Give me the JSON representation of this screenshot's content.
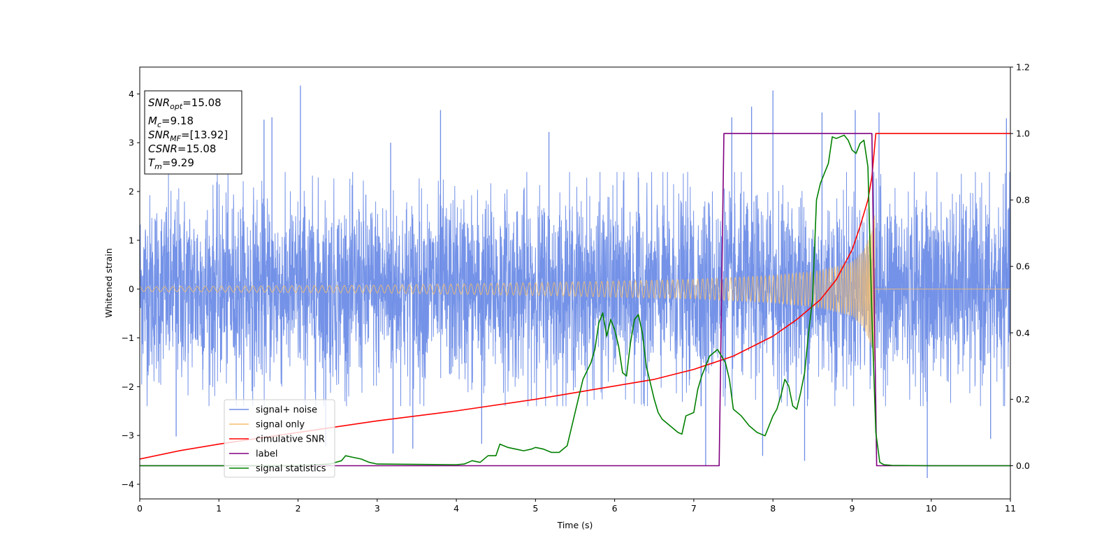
{
  "chart_data": {
    "type": "line",
    "xlabel": "Time (s)",
    "ylabel": "Whitened strain",
    "xlim": [
      0,
      11
    ],
    "ylim": [
      -4.3,
      4.55
    ],
    "ylim_right": [
      -0.1,
      1.2
    ],
    "x_ticks": [
      0,
      1,
      2,
      3,
      4,
      5,
      6,
      7,
      8,
      9,
      10,
      11
    ],
    "y_ticks": [
      -4,
      -3,
      -2,
      -1,
      0,
      1,
      2,
      3,
      4
    ],
    "y_ticks_right": [
      0.0,
      0.2,
      0.4,
      0.6,
      0.8,
      1.0,
      1.2
    ],
    "y_tick_labels": [
      "−4",
      "−3",
      "−2",
      "−1",
      "0",
      "1",
      "2",
      "3",
      "4"
    ],
    "y_tick_labels_right": [
      "0.0",
      "0.2",
      "0.4",
      "0.6",
      "0.8",
      "1.0",
      "1.2"
    ],
    "grid": false,
    "legend_position": "lower-left",
    "series": [
      {
        "name": "signal+ noise",
        "axis": "left",
        "color": "#6d8ce6",
        "style": "noise-band",
        "x_range": [
          0,
          11
        ],
        "typical_range": [
          -1.8,
          1.9
        ],
        "spikes": [
          {
            "x": 2.03,
            "y": 4.17
          },
          {
            "x": 1.57,
            "y": 3.47
          },
          {
            "x": 1.67,
            "y": 3.52
          },
          {
            "x": 3.8,
            "y": 3.67
          },
          {
            "x": 7.48,
            "y": 3.52
          },
          {
            "x": 7.73,
            "y": 3.74
          },
          {
            "x": 8.0,
            "y": 4.07
          },
          {
            "x": 8.62,
            "y": 3.62
          },
          {
            "x": 9.04,
            "y": 3.67
          },
          {
            "x": 9.34,
            "y": 3.62
          },
          {
            "x": 10.95,
            "y": 3.5
          },
          {
            "x": 5.17,
            "y": 3.22
          },
          {
            "x": 3.17,
            "y": 3.0
          },
          {
            "x": 0.46,
            "y": -3.02
          },
          {
            "x": 2.35,
            "y": -3.22
          },
          {
            "x": 3.2,
            "y": -3.37
          },
          {
            "x": 3.45,
            "y": -3.27
          },
          {
            "x": 7.15,
            "y": -3.62
          },
          {
            "x": 8.4,
            "y": -3.52
          },
          {
            "x": 9.95,
            "y": -3.87
          },
          {
            "x": 10.75,
            "y": -3.07
          },
          {
            "x": 7.87,
            "y": -3.42
          },
          {
            "x": 4.32,
            "y": -3.17
          }
        ]
      },
      {
        "name": "signal only",
        "axis": "left",
        "color": "#f5be6e",
        "style": "chirp",
        "amplitude_envelope": [
          [
            0,
            0.05
          ],
          [
            3,
            0.08
          ],
          [
            5,
            0.13
          ],
          [
            7,
            0.2
          ],
          [
            8,
            0.28
          ],
          [
            8.6,
            0.38
          ],
          [
            9.0,
            0.55
          ],
          [
            9.15,
            0.8
          ],
          [
            9.25,
            1.2
          ],
          [
            9.29,
            1.6
          ]
        ],
        "merger_time": 9.29
      },
      {
        "name": "cimulative SNR",
        "axis": "right",
        "color": "#ff0000",
        "x": [
          0,
          0.5,
          1,
          2,
          3,
          4,
          5,
          6,
          6.5,
          7,
          7.5,
          8,
          8.3,
          8.6,
          8.8,
          9.0,
          9.1,
          9.2,
          9.25,
          9.3,
          11
        ],
        "values": [
          0.02,
          0.045,
          0.065,
          0.1,
          0.135,
          0.165,
          0.2,
          0.24,
          0.26,
          0.29,
          0.33,
          0.39,
          0.44,
          0.5,
          0.56,
          0.65,
          0.72,
          0.8,
          0.87,
          1.0,
          1.0
        ]
      },
      {
        "name": "label",
        "axis": "right",
        "color": "#800080",
        "x": [
          0,
          7.32,
          7.38,
          9.25,
          9.31,
          11
        ],
        "values": [
          0,
          0,
          1,
          1,
          0,
          0
        ]
      },
      {
        "name": "signal statistics",
        "axis": "right",
        "color": "#008000",
        "x": [
          0,
          1,
          2,
          2.4,
          2.55,
          2.6,
          2.7,
          2.8,
          2.9,
          3.0,
          3.5,
          4.0,
          4.1,
          4.2,
          4.3,
          4.4,
          4.5,
          4.55,
          4.65,
          4.75,
          4.85,
          4.95,
          5.0,
          5.1,
          5.2,
          5.3,
          5.4,
          5.5,
          5.6,
          5.7,
          5.75,
          5.8,
          5.85,
          5.9,
          5.95,
          6.0,
          6.05,
          6.1,
          6.15,
          6.2,
          6.25,
          6.3,
          6.35,
          6.4,
          6.45,
          6.5,
          6.55,
          6.6,
          6.7,
          6.8,
          6.85,
          6.9,
          7.0,
          7.05,
          7.1,
          7.15,
          7.2,
          7.3,
          7.4,
          7.45,
          7.5,
          7.6,
          7.7,
          7.8,
          7.85,
          7.9,
          8.0,
          8.05,
          8.1,
          8.15,
          8.2,
          8.25,
          8.3,
          8.35,
          8.4,
          8.45,
          8.5,
          8.55,
          8.6,
          8.65,
          8.7,
          8.75,
          8.8,
          8.85,
          8.9,
          8.95,
          9.0,
          9.05,
          9.1,
          9.15,
          9.2,
          9.25,
          9.3,
          9.35,
          9.4,
          9.5,
          10,
          11
        ],
        "values": [
          0,
          0,
          0,
          0.005,
          0.015,
          0.03,
          0.025,
          0.02,
          0.01,
          0.005,
          0.004,
          0.003,
          0.005,
          0.015,
          0.01,
          0.03,
          0.03,
          0.065,
          0.055,
          0.05,
          0.045,
          0.05,
          0.055,
          0.05,
          0.04,
          0.04,
          0.06,
          0.16,
          0.26,
          0.31,
          0.35,
          0.43,
          0.46,
          0.39,
          0.44,
          0.41,
          0.36,
          0.28,
          0.27,
          0.37,
          0.44,
          0.455,
          0.4,
          0.3,
          0.25,
          0.2,
          0.16,
          0.14,
          0.12,
          0.1,
          0.095,
          0.15,
          0.16,
          0.23,
          0.27,
          0.3,
          0.33,
          0.35,
          0.31,
          0.26,
          0.17,
          0.15,
          0.12,
          0.1,
          0.095,
          0.09,
          0.15,
          0.17,
          0.21,
          0.26,
          0.24,
          0.18,
          0.17,
          0.22,
          0.28,
          0.4,
          0.5,
          0.8,
          0.85,
          0.88,
          0.91,
          0.99,
          0.985,
          0.99,
          0.995,
          0.98,
          0.95,
          0.94,
          0.97,
          0.98,
          0.9,
          0.45,
          0.1,
          0.01,
          0.003,
          0.001,
          0,
          0
        ]
      }
    ],
    "annotation_box": {
      "lines": [
        {
          "base": "SNR",
          "sub": "opt",
          "value": "=15.08"
        },
        {
          "base": "M",
          "sub": "c",
          "value": "=9.18"
        },
        {
          "base": "SNR",
          "sub": "MF",
          "value": "=[13.92]"
        },
        {
          "base": "CSNR",
          "sub": "",
          "value": "=15.08"
        },
        {
          "base": "T",
          "sub": "m",
          "value": "=9.29"
        }
      ]
    }
  }
}
